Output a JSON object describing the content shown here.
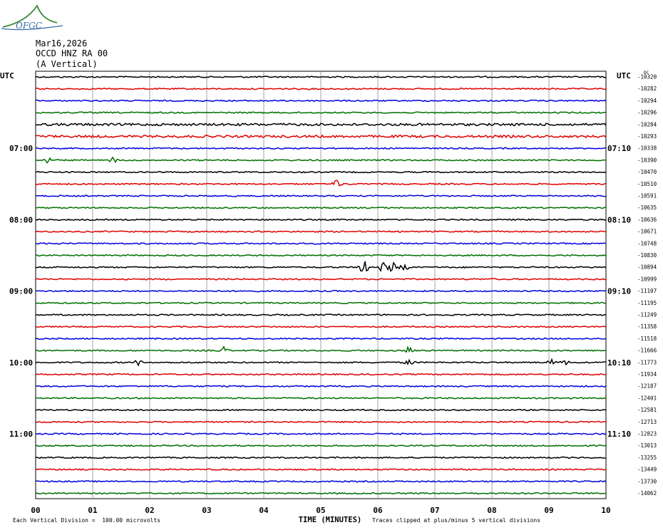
{
  "header": {
    "date": "Mar16,2026",
    "station": "OCCD HNZ RA 00",
    "component": "(A Vertical)"
  },
  "logo": {
    "text": "OFGC",
    "icon": "mountain-swoosh-logo"
  },
  "colors": {
    "trace_cycle": [
      "#000000",
      "#e00000",
      "#0000e0",
      "#007000"
    ],
    "grid": "#8c8c8c"
  },
  "chart_data": {
    "type": "line",
    "title": "",
    "xlabel": "TIME (MINUTES)",
    "ylabel": "",
    "xlim": [
      0,
      10
    ],
    "x_ticks": [
      "00",
      "01",
      "02",
      "03",
      "04",
      "05",
      "06",
      "07",
      "08",
      "09",
      "10"
    ],
    "left_axis_label": "UTC",
    "right_axis_label": "UTC",
    "dc_label": "DC",
    "left_hour_labels": [
      "07:00",
      "08:00",
      "09:00",
      "10:00",
      "11:00"
    ],
    "right_hour_labels": [
      "07:10",
      "08:10",
      "09:10",
      "10:10",
      "11:10"
    ],
    "trace_minutes": 10,
    "trace_count": 36,
    "dc_offsets": [
      "-10320",
      "-10282",
      "-10294",
      "-10296",
      "-10284",
      "-10293",
      "-10338",
      "-10390",
      "-10470",
      "-10510",
      "-10591",
      "-10635",
      "-10636",
      "-10671",
      "-10748",
      "-10830",
      "-10894",
      "-10999",
      "-11107",
      "-11195",
      "-11249",
      "-11358",
      "-11518",
      "-11666",
      "-11773",
      "-11934",
      "-12187",
      "-12401",
      "-12581",
      "-12713",
      "-12823",
      "-13013",
      "-13255",
      "-13449",
      "-13730",
      "-14062"
    ],
    "events": [
      {
        "trace": 7,
        "minute": 0.18,
        "amp": 0.8
      },
      {
        "trace": 7,
        "minute": 1.35,
        "amp": 0.6
      },
      {
        "trace": 9,
        "minute": 5.28,
        "amp": 0.9
      },
      {
        "trace": 16,
        "minute": 5.75,
        "amp": 1.4
      },
      {
        "trace": 16,
        "minute": 6.1,
        "amp": 0.9
      },
      {
        "trace": 16,
        "minute": 6.25,
        "amp": 1.0
      },
      {
        "trace": 16,
        "minute": 6.45,
        "amp": 0.8
      },
      {
        "trace": 23,
        "minute": 3.3,
        "amp": 0.7
      },
      {
        "trace": 23,
        "minute": 6.55,
        "amp": 0.8
      },
      {
        "trace": 24,
        "minute": 1.8,
        "amp": 0.6
      },
      {
        "trace": 24,
        "minute": 6.55,
        "amp": 0.6
      },
      {
        "trace": 24,
        "minute": 9.05,
        "amp": 0.7
      },
      {
        "trace": 24,
        "minute": 9.3,
        "amp": 0.6
      }
    ],
    "footer_left": "Each Vertical Division =  100.00 microvolts",
    "footer_right": "Traces clipped at plus/minus 5 vertical divisions"
  }
}
